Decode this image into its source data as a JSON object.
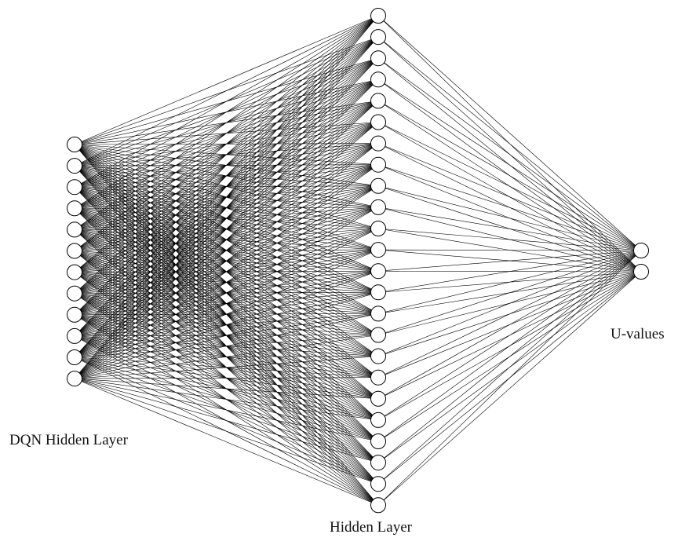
{
  "diagram": {
    "type": "fully-connected neural network",
    "layers": [
      {
        "label": "DQN Hidden Layer",
        "neurons": 12
      },
      {
        "label": "Hidden Layer",
        "neurons": 24
      },
      {
        "label": "U-values",
        "neurons": 2
      }
    ],
    "connectivity": "fully-connected between adjacent layers",
    "colors": {
      "background": "#ffffff",
      "node_fill": "#ffffff",
      "stroke": "#000000"
    }
  }
}
